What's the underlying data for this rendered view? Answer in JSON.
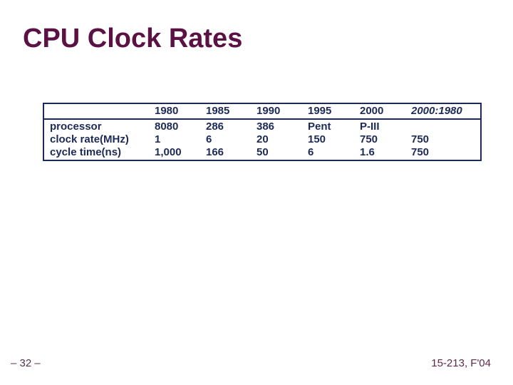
{
  "slide": {
    "title": "CPU Clock Rates",
    "footer_left": "– 32 –",
    "footer_right": "15-213, F'04"
  },
  "colors": {
    "title_maroon": "#5B1144",
    "table_navy": "#1D2A57",
    "footer_left_color": "#503448",
    "footer_right_maroon": "#5E2949",
    "background": "#FFFFFF"
  },
  "chart_data": {
    "type": "table",
    "title": "CPU Clock Rates",
    "columns": [
      "",
      "1980",
      "1985",
      "1990",
      "1995",
      "2000",
      "2000:1980"
    ],
    "rows": [
      {
        "label": "processor",
        "values": [
          "8080",
          "286",
          "386",
          "Pent",
          "P-III",
          ""
        ]
      },
      {
        "label": "clock rate(MHz)",
        "values": [
          "1",
          "6",
          "20",
          "150",
          "750",
          "750"
        ]
      },
      {
        "label": "cycle time(ns)",
        "values": [
          "1,000",
          "166",
          "50",
          "6",
          "1.6",
          "750"
        ]
      }
    ]
  }
}
